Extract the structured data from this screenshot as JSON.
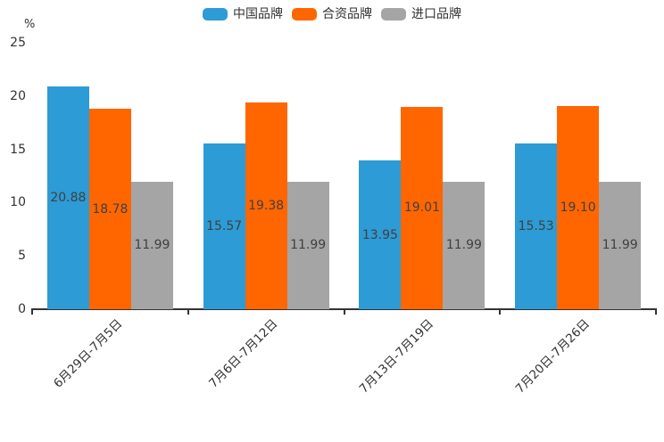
{
  "chart_data": {
    "type": "bar",
    "title": "",
    "unit_label": "%",
    "categories": [
      "6月29日-7月5日",
      "7月6日-7月12日",
      "7月13日-7月19日",
      "7月20日-7月26日"
    ],
    "series": [
      {
        "name": "中国品牌",
        "color": "#2D9BD5",
        "values": [
          20.88,
          15.57,
          13.95,
          15.53
        ],
        "labels": [
          "20.88",
          "15.57",
          "13.95",
          "15.53"
        ]
      },
      {
        "name": "合资品牌",
        "color": "#FF6600",
        "values": [
          18.78,
          19.38,
          19.01,
          19.1
        ],
        "labels": [
          "18.78",
          "19.38",
          "19.01",
          "19.10"
        ]
      },
      {
        "name": "进口品牌",
        "color": "#A5A5A5",
        "values": [
          11.99,
          11.99,
          11.99,
          11.99
        ],
        "labels": [
          "11.99",
          "11.99",
          "11.99",
          "11.99"
        ]
      }
    ],
    "ylim": [
      0,
      25
    ],
    "yticks": [
      0,
      5,
      10,
      15,
      20,
      25
    ],
    "grid": false,
    "legend_position": "top",
    "axis_color": "#333333",
    "value_label_color": "#404040",
    "value_label_position": "inside-middle"
  }
}
